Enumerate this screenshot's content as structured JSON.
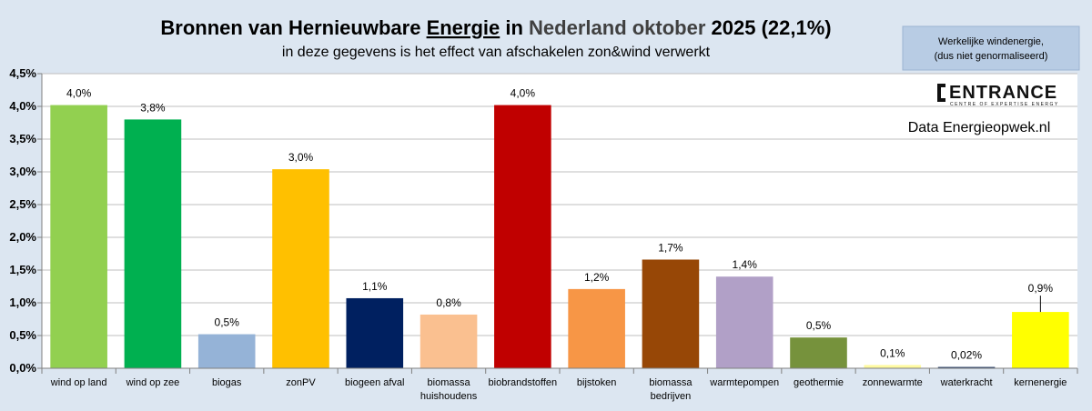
{
  "chart_data": {
    "type": "bar",
    "title_parts": [
      {
        "text": "Bronnen van Hernieuwbare ",
        "color": "#000000",
        "underline": false
      },
      {
        "text": "Energie",
        "color": "#000000",
        "underline": true
      },
      {
        "text": " in ",
        "color": "#000000",
        "underline": false
      },
      {
        "text": "Nederland oktober",
        "color": "#404040",
        "underline": false
      },
      {
        "text": " 2025 (22,1%)",
        "color": "#000000",
        "underline": false
      }
    ],
    "subtitle": "in deze gegevens is het effect van afschakelen zon&wind verwerkt",
    "ylim": [
      0,
      4.5
    ],
    "yticks": [
      0,
      0.5,
      1.0,
      1.5,
      2.0,
      2.5,
      3.0,
      3.5,
      4.0,
      4.5
    ],
    "ytick_labels": [
      "0,0%",
      "0,5%",
      "1,0%",
      "1,5%",
      "2,0%",
      "2,5%",
      "3,0%",
      "3,5%",
      "4,0%",
      "4,5%"
    ],
    "grid": true,
    "categories": [
      [
        "wind op land"
      ],
      [
        "wind op zee"
      ],
      [
        "biogas"
      ],
      [
        "zonPV"
      ],
      [
        "biogeen afval"
      ],
      [
        "biomassa",
        "huishoudens"
      ],
      [
        "biobrandstoffen"
      ],
      [
        "bijstoken"
      ],
      [
        "biomassa",
        "bedrijven"
      ],
      [
        "warmtepompen"
      ],
      [
        "geothermie"
      ],
      [
        "zonnewarmte"
      ],
      [
        "waterkracht"
      ],
      [
        "kernenergie"
      ]
    ],
    "values": [
      4.02,
      3.8,
      0.52,
      3.04,
      1.07,
      0.82,
      4.02,
      1.21,
      1.66,
      1.4,
      0.47,
      0.05,
      0.02,
      0.86
    ],
    "value_labels": [
      "4,0%",
      "3,8%",
      "0,5%",
      "3,0%",
      "1,1%",
      "0,8%",
      "4,0%",
      "1,2%",
      "1,7%",
      "1,4%",
      "0,5%",
      "0,1%",
      "0,02%",
      "0,9%"
    ],
    "colors": [
      "#92d050",
      "#00b050",
      "#95b3d7",
      "#ffc000",
      "#002060",
      "#fac090",
      "#c00000",
      "#f79646",
      "#974706",
      "#b1a0c7",
      "#76923c",
      "#fffaa0",
      "#1f3864",
      "#ffff00"
    ],
    "annotation_box": [
      "Werkelijke windenergie,",
      "(dus niet genormaliseerd)"
    ],
    "logo_text": "ENTRANCE",
    "logo_subtext": "CENTRE OF EXPERTISE ENERGY",
    "source": "Data Energieopwek.nl"
  }
}
